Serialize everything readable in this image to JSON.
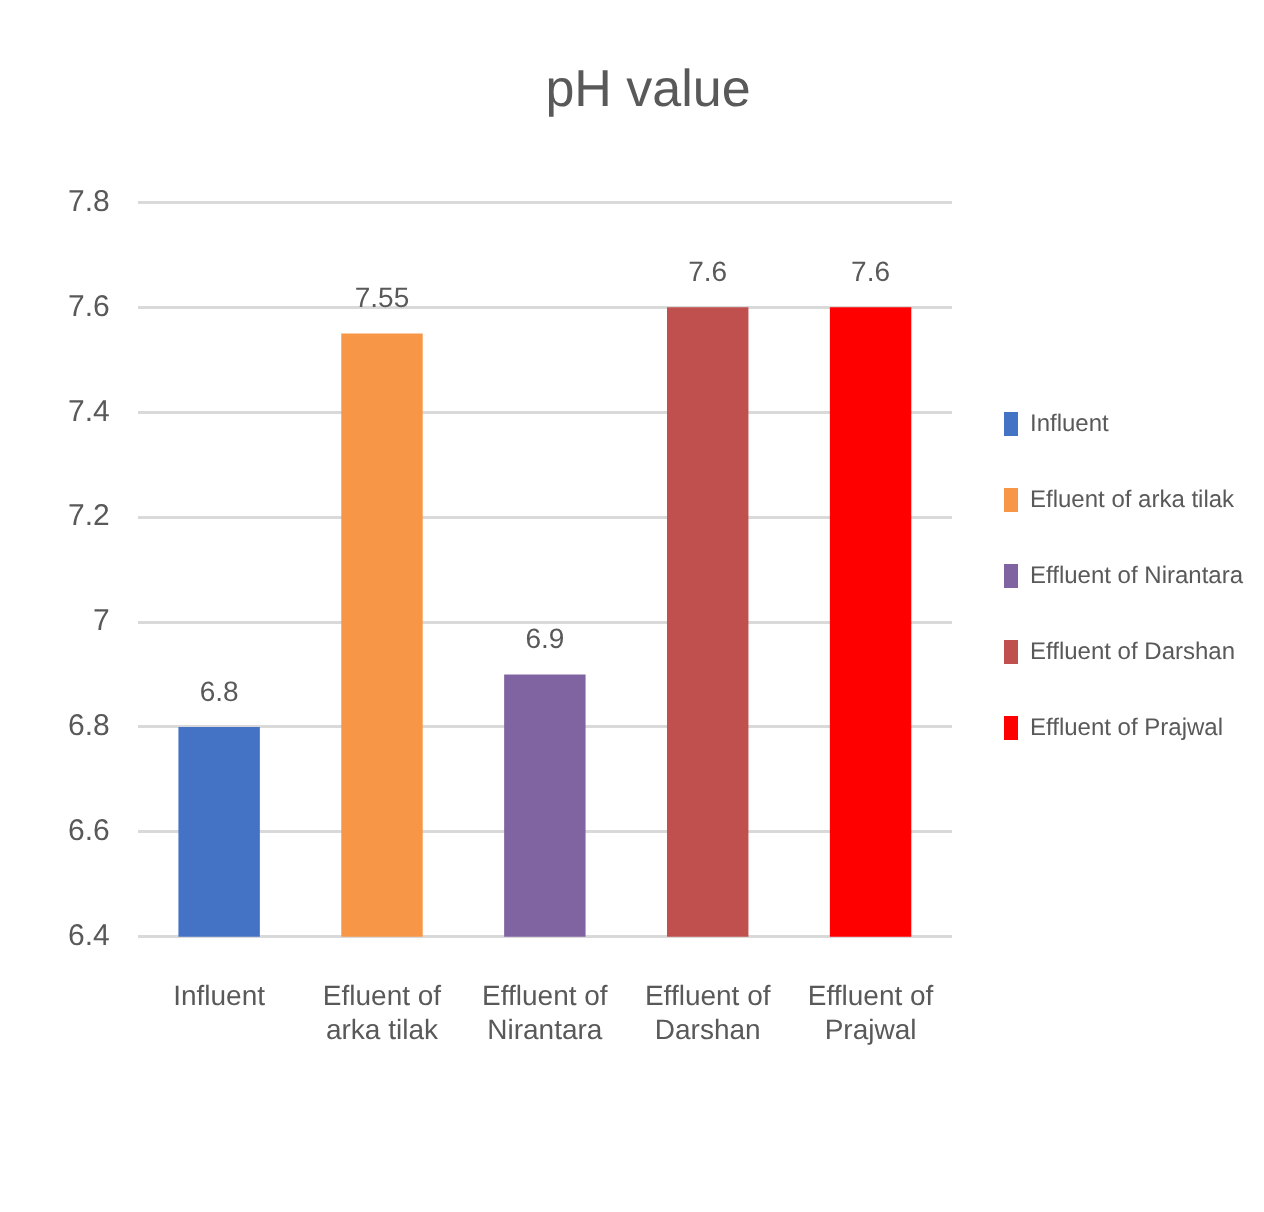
{
  "chart_data": {
    "type": "bar",
    "title": "pH value",
    "categories": [
      "Influent",
      "Efluent of arka tilak",
      "Effluent of Nirantara",
      "Effluent of Darshan",
      "Effluent of Prajwal"
    ],
    "series": [
      {
        "name": "Influent",
        "color": "#4472c4",
        "values": [
          6.8,
          null,
          null,
          null,
          null
        ]
      },
      {
        "name": "Efluent of arka tilak",
        "color": "#f79646",
        "values": [
          null,
          7.55,
          null,
          null,
          null
        ]
      },
      {
        "name": "Effluent of Nirantara",
        "color": "#8064a2",
        "values": [
          null,
          null,
          6.9,
          null,
          null
        ]
      },
      {
        "name": "Effluent of Darshan",
        "color": "#c0504d",
        "values": [
          null,
          null,
          null,
          7.6,
          null
        ]
      },
      {
        "name": "Effluent of Prajwal",
        "color": "#ff0000",
        "values": [
          null,
          null,
          null,
          null,
          7.6
        ]
      }
    ],
    "ylim": [
      6.4,
      7.8
    ],
    "yticks": [
      6.4,
      6.6,
      6.8,
      7,
      7.2,
      7.4,
      7.6,
      7.8
    ],
    "grid": "y",
    "legend": "right",
    "data_labels": true
  }
}
